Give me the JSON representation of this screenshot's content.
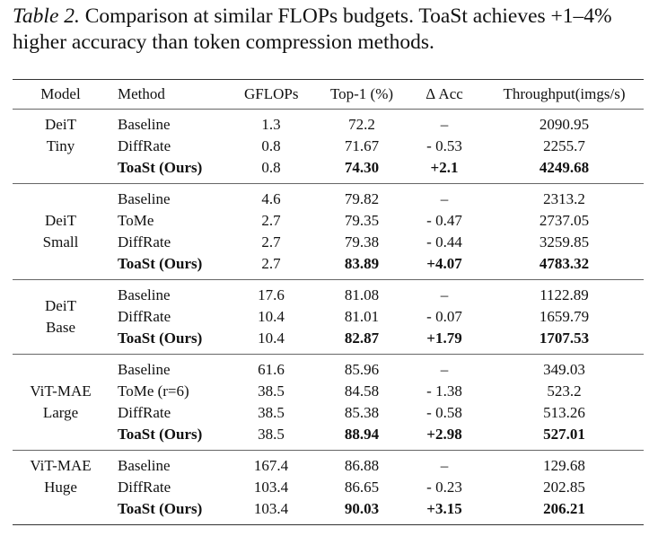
{
  "caption": {
    "label": "Table 2.",
    "text": "Comparison at similar FLOPs budgets. ToaSt achieves +1–4% higher accuracy than token compression methods."
  },
  "table": {
    "headers": [
      "Model",
      "Method",
      "GFLOPs",
      "Top-1 (%)",
      "Δ Acc",
      "Throughput(imgs/s)"
    ],
    "groups": [
      {
        "model": [
          "DeiT",
          "Tiny"
        ],
        "rows": [
          {
            "method": "Baseline",
            "gflops": "1.3",
            "top1": "72.2",
            "dacc": "–",
            "throughput": "2090.95",
            "bold": false
          },
          {
            "method": "DiffRate",
            "gflops": "0.8",
            "top1": "71.67",
            "dacc": "- 0.53",
            "throughput": "2255.7",
            "bold": false
          },
          {
            "method": "ToaSt (Ours)",
            "gflops": "0.8",
            "top1": "74.30",
            "dacc": "+2.1",
            "throughput": "4249.68",
            "bold": true
          }
        ]
      },
      {
        "model": [
          "DeiT",
          "Small"
        ],
        "rows": [
          {
            "method": "Baseline",
            "gflops": "4.6",
            "top1": "79.82",
            "dacc": "–",
            "throughput": "2313.2",
            "bold": false
          },
          {
            "method": "ToMe",
            "gflops": "2.7",
            "top1": "79.35",
            "dacc": "- 0.47",
            "throughput": "2737.05",
            "bold": false
          },
          {
            "method": "DiffRate",
            "gflops": "2.7",
            "top1": "79.38",
            "dacc": "- 0.44",
            "throughput": "3259.85",
            "bold": false
          },
          {
            "method": "ToaSt (Ours)",
            "gflops": "2.7",
            "top1": "83.89",
            "dacc": "+4.07",
            "throughput": "4783.32",
            "bold": true
          }
        ]
      },
      {
        "model": [
          "DeiT",
          "Base"
        ],
        "rows": [
          {
            "method": "Baseline",
            "gflops": "17.6",
            "top1": "81.08",
            "dacc": "–",
            "throughput": "1122.89",
            "bold": false
          },
          {
            "method": "DiffRate",
            "gflops": "10.4",
            "top1": "81.01",
            "dacc": "- 0.07",
            "throughput": "1659.79",
            "bold": false
          },
          {
            "method": "ToaSt (Ours)",
            "gflops": "10.4",
            "top1": "82.87",
            "dacc": "+1.79",
            "throughput": "1707.53",
            "bold": true
          }
        ]
      },
      {
        "model": [
          "ViT-MAE",
          "Large"
        ],
        "rows": [
          {
            "method": "Baseline",
            "gflops": "61.6",
            "top1": "85.96",
            "dacc": "–",
            "throughput": "349.03",
            "bold": false
          },
          {
            "method": "ToMe (r=6)",
            "gflops": "38.5",
            "top1": "84.58",
            "dacc": "- 1.38",
            "throughput": "523.2",
            "bold": false
          },
          {
            "method": "DiffRate",
            "gflops": "38.5",
            "top1": "85.38",
            "dacc": "- 0.58",
            "throughput": "513.26",
            "bold": false
          },
          {
            "method": "ToaSt (Ours)",
            "gflops": "38.5",
            "top1": "88.94",
            "dacc": "+2.98",
            "throughput": "527.01",
            "bold": true
          }
        ]
      },
      {
        "model": [
          "ViT-MAE",
          "Huge"
        ],
        "rows": [
          {
            "method": "Baseline",
            "gflops": "167.4",
            "top1": "86.88",
            "dacc": "–",
            "throughput": "129.68",
            "bold": false
          },
          {
            "method": "DiffRate",
            "gflops": "103.4",
            "top1": "86.65",
            "dacc": "- 0.23",
            "throughput": "202.85",
            "bold": false
          },
          {
            "method": "ToaSt (Ours)",
            "gflops": "103.4",
            "top1": "90.03",
            "dacc": "+3.15",
            "throughput": "206.21",
            "bold": true
          }
        ]
      }
    ]
  }
}
